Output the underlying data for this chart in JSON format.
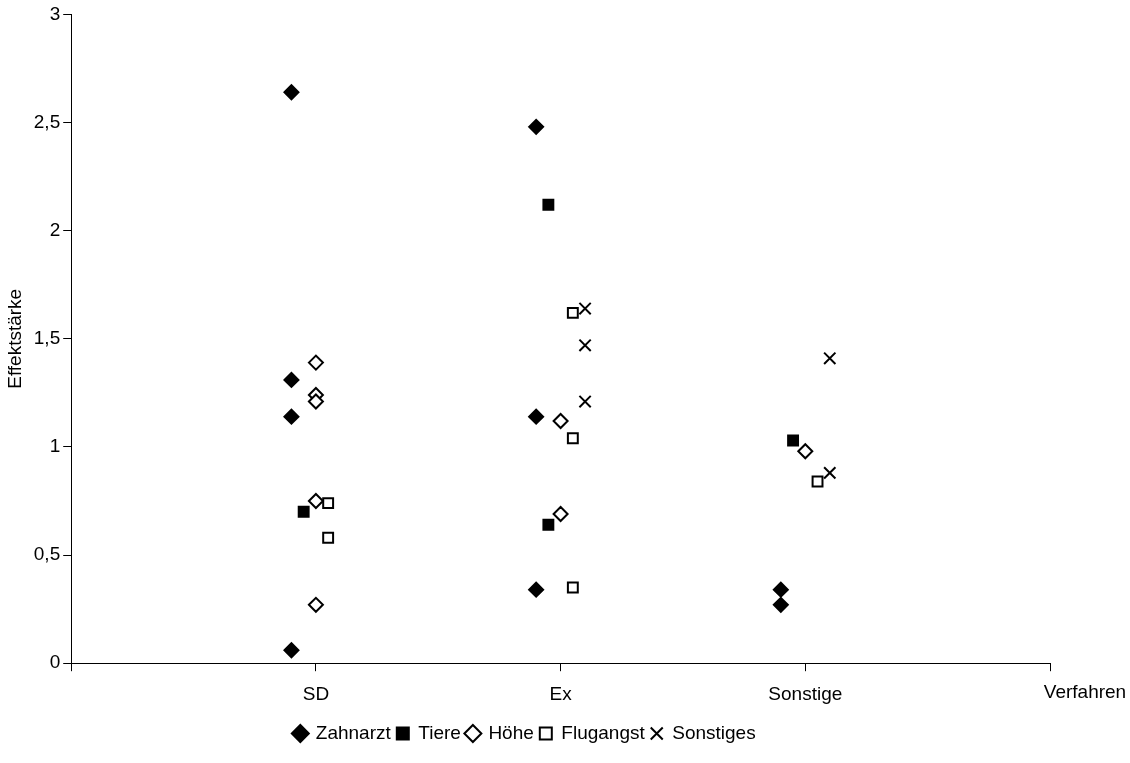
{
  "chart_data": {
    "type": "scatter",
    "xlabel": "Verfahren",
    "ylabel": "Effektstärke",
    "categories": [
      "SD",
      "Ex",
      "Sonstige"
    ],
    "ylim": [
      0,
      3
    ],
    "yticks": [
      0,
      {
        "value": 0.5,
        "label": "0,5"
      },
      1,
      {
        "value": 1.5,
        "label": "1,5"
      },
      2,
      {
        "value": 2.5,
        "label": "2,5"
      },
      3
    ],
    "grid": false,
    "legend": "bottom",
    "series": [
      {
        "name": "Zahnarzt",
        "color": "#000000",
        "marker": "diamond",
        "x": [
          "SD",
          "SD",
          "SD",
          "SD",
          "Ex",
          "Ex",
          "Ex",
          "Sonstige",
          "Sonstige"
        ],
        "values": [
          2.64,
          1.31,
          1.14,
          0.06,
          2.48,
          1.14,
          0.34,
          0.34,
          0.27
        ]
      },
      {
        "name": "Tiere",
        "color": "#000000",
        "marker": "square",
        "x": [
          "SD",
          "Ex",
          "Ex",
          "Sonstige"
        ],
        "values": [
          0.7,
          2.12,
          0.64,
          1.03
        ]
      },
      {
        "name": "Höhe",
        "color": "#ffffff",
        "marker": "diamond",
        "x": [
          "SD",
          "SD",
          "SD",
          "SD",
          "SD",
          "Ex",
          "Ex",
          "Sonstige"
        ],
        "values": [
          1.39,
          1.24,
          1.21,
          0.75,
          0.27,
          1.12,
          0.69,
          0.98
        ]
      },
      {
        "name": "Flugangst",
        "color": "#ffffff",
        "marker": "square",
        "x": [
          "SD",
          "SD",
          "Ex",
          "Ex",
          "Ex",
          "Sonstige"
        ],
        "values": [
          0.74,
          0.58,
          1.62,
          1.04,
          0.35,
          0.84
        ]
      },
      {
        "name": "Sonstiges",
        "color": "#000000",
        "marker": "cross",
        "x": [
          "Ex",
          "Ex",
          "Ex",
          "Sonstige",
          "Sonstige"
        ],
        "values": [
          1.64,
          1.47,
          1.21,
          1.41,
          0.88
        ]
      }
    ]
  }
}
